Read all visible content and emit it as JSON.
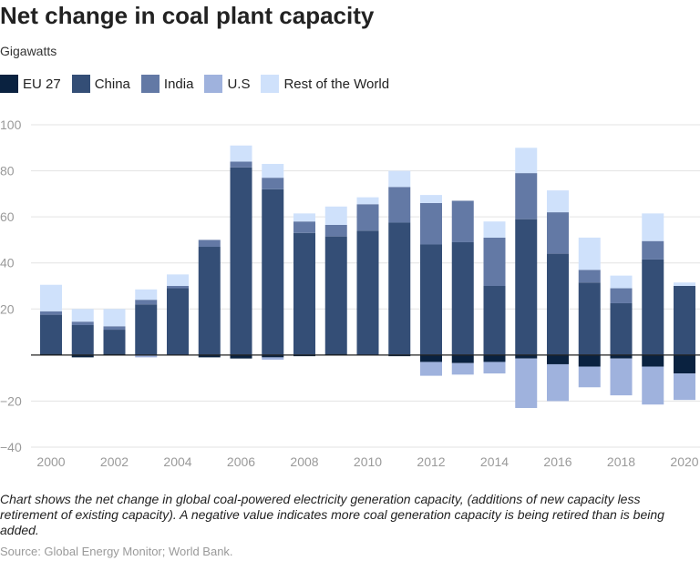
{
  "header": {
    "title": "Net change in coal plant capacity",
    "subtitle": "Gigawatts"
  },
  "legend": [
    {
      "label": "EU 27",
      "color": "#0a2240"
    },
    {
      "label": "China",
      "color": "#344e76"
    },
    {
      "label": "India",
      "color": "#6379a5"
    },
    {
      "label": "U.S",
      "color": "#9fb2dd"
    },
    {
      "label": "Rest of the World",
      "color": "#cfe1fb"
    }
  ],
  "footer": {
    "note": "Chart shows the net change in global coal-powered electricity generation capacity, (additions of new capacity less retirement of existing capacity). A negative value indicates more coal generation capacity is being retired than is being added.",
    "source": "Source: Global Energy Monitor; World Bank."
  },
  "chart_data": {
    "type": "bar",
    "stacked": true,
    "title": "Net change in coal plant capacity",
    "ylabel": "Gigawatts",
    "ylim": [
      -40,
      100
    ],
    "yticks": [
      100,
      80,
      60,
      40,
      20,
      -20,
      -40
    ],
    "grid": true,
    "legend_position": "top",
    "categories": [
      "2000",
      "2001",
      "2002",
      "2003",
      "2004",
      "2005",
      "2006",
      "2007",
      "2008",
      "2009",
      "2010",
      "2011",
      "2012",
      "2013",
      "2014",
      "2015",
      "2016",
      "2017",
      "2018",
      "2019",
      "2020"
    ],
    "x_tick_labels": [
      "2000",
      "2002",
      "2004",
      "2006",
      "2008",
      "2010",
      "2012",
      "2014",
      "2016",
      "2018",
      "2020"
    ],
    "series": [
      {
        "name": "EU 27",
        "color": "#0a2240",
        "values": [
          0.5,
          -1,
          0.5,
          0,
          0,
          -1,
          -1.5,
          -1,
          -0.5,
          0.5,
          0,
          -0.5,
          -3,
          -3.5,
          -3,
          -1.5,
          -4,
          -5,
          -1.5,
          -5,
          -8
        ]
      },
      {
        "name": "China",
        "color": "#344e76",
        "values": [
          17,
          13,
          10.5,
          22,
          29,
          47,
          81.5,
          72,
          53,
          51,
          54,
          57.5,
          48,
          49,
          30,
          59,
          44,
          31.5,
          22.5,
          41.5,
          30
        ]
      },
      {
        "name": "India",
        "color": "#6379a5",
        "values": [
          1.5,
          1.5,
          1.5,
          2,
          1,
          3,
          2.5,
          5,
          5,
          5,
          11.5,
          15.5,
          18,
          18,
          21,
          20,
          18,
          5.5,
          6.5,
          8,
          0
        ]
      },
      {
        "name": "U.S",
        "color": "#9fb2dd",
        "values": [
          0,
          0,
          0,
          -1,
          0,
          0,
          0,
          -1,
          0,
          0,
          0,
          0,
          -6,
          -5,
          -5,
          -21.5,
          -16,
          -9,
          -16,
          -16.5,
          -11.5
        ]
      },
      {
        "name": "Rest of the World",
        "color": "#cfe1fb",
        "values": [
          11.5,
          5.5,
          7.5,
          4.5,
          5,
          0,
          7,
          6,
          3.5,
          8,
          3,
          7,
          3.5,
          0,
          7,
          11,
          9.5,
          14,
          5.5,
          12,
          1.5
        ]
      }
    ]
  }
}
